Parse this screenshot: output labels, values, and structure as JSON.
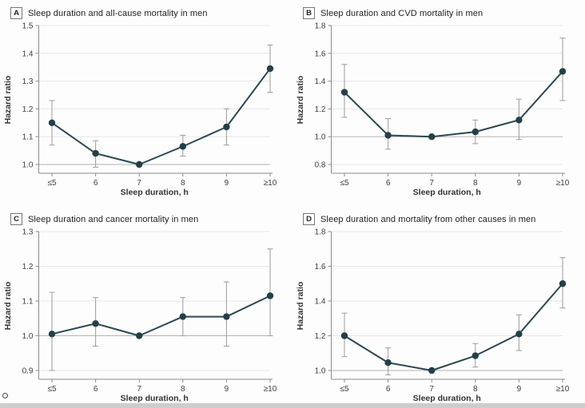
{
  "figure_title": "Sleep duration and mortality in men — hazard ratio panels",
  "colors": {
    "background": "#fdfdfd",
    "line": "#2b4852",
    "marker": "#243f48",
    "error_bar": "#a3a3a3",
    "grid": "#e6e6e6",
    "ref_grid": "#b3b3b3",
    "axis": "#8c8c8c",
    "tick_text": "#404040",
    "axis_title": "#333333",
    "panel_title": "#222222",
    "badge_border": "#777777",
    "bottom_bar": "#cdcdcd",
    "artifact_ring": "#4a4a4a"
  },
  "chart_data": [
    {
      "type": "line",
      "panel_label": "A",
      "title": "Sleep duration and all-cause mortality in men",
      "xlabel": "Sleep duration, h",
      "ylabel": "Hazard ratio",
      "categories": [
        "≤5",
        "6",
        "7",
        "8",
        "9",
        "≥10"
      ],
      "ylim": [
        1.0,
        1.5
      ],
      "yticks": [
        1.0,
        1.1,
        1.2,
        1.3,
        1.4,
        1.5
      ],
      "ref_line": 1.0,
      "grid": true,
      "legend_position": "none",
      "series": [
        {
          "name": "Hazard ratio (95% CI)",
          "values": [
            1.15,
            1.04,
            1.0,
            1.065,
            1.135,
            1.345
          ],
          "ci_low": [
            1.07,
            0.99,
            null,
            1.03,
            1.07,
            1.26
          ],
          "ci_high": [
            1.23,
            1.085,
            null,
            1.105,
            1.2,
            1.43
          ]
        }
      ]
    },
    {
      "type": "line",
      "panel_label": "B",
      "title": "Sleep duration and CVD mortality in men",
      "xlabel": "Sleep duration, h",
      "ylabel": "Hazard ratio",
      "categories": [
        "≤5",
        "6",
        "7",
        "8",
        "9",
        "≥10"
      ],
      "ylim": [
        0.8,
        1.8
      ],
      "yticks": [
        0.8,
        1.0,
        1.2,
        1.4,
        1.6,
        1.8
      ],
      "ref_line": 1.0,
      "grid": true,
      "legend_position": "none",
      "series": [
        {
          "name": "Hazard ratio (95% CI)",
          "values": [
            1.32,
            1.01,
            1.0,
            1.035,
            1.12,
            1.47
          ],
          "ci_low": [
            1.14,
            0.91,
            null,
            0.95,
            0.98,
            1.26
          ],
          "ci_high": [
            1.52,
            1.13,
            null,
            1.12,
            1.27,
            1.71
          ]
        }
      ]
    },
    {
      "type": "line",
      "panel_label": "C",
      "title": "Sleep duration and cancer mortality in men",
      "xlabel": "Sleep duration, h",
      "ylabel": "Hazard ratio",
      "categories": [
        "≤5",
        "6",
        "7",
        "8",
        "9",
        "≥10"
      ],
      "ylim": [
        0.9,
        1.3
      ],
      "yticks": [
        0.9,
        1.0,
        1.1,
        1.2,
        1.3
      ],
      "ref_line": 1.0,
      "grid": true,
      "legend_position": "none",
      "series": [
        {
          "name": "Hazard ratio (95% CI)",
          "values": [
            1.005,
            1.035,
            1.0,
            1.055,
            1.055,
            1.115
          ],
          "ci_low": [
            0.9,
            0.97,
            null,
            1.0,
            0.97,
            1.0
          ],
          "ci_high": [
            1.125,
            1.11,
            null,
            1.11,
            1.155,
            1.25
          ]
        }
      ]
    },
    {
      "type": "line",
      "panel_label": "D",
      "title": "Sleep duration and mortality from other causes in men",
      "xlabel": "Sleep duration, h",
      "ylabel": "Hazard ratio",
      "categories": [
        "≤5",
        "6",
        "7",
        "8",
        "9",
        "≥10"
      ],
      "ylim": [
        1.0,
        1.8
      ],
      "yticks": [
        1.0,
        1.2,
        1.4,
        1.6,
        1.8
      ],
      "ref_line": 1.0,
      "grid": true,
      "legend_position": "none",
      "series": [
        {
          "name": "Hazard ratio (95% CI)",
          "values": [
            1.2,
            1.045,
            1.0,
            1.085,
            1.21,
            1.5
          ],
          "ci_low": [
            1.08,
            0.975,
            null,
            1.02,
            1.115,
            1.36
          ],
          "ci_high": [
            1.33,
            1.13,
            null,
            1.155,
            1.32,
            1.65
          ]
        }
      ]
    }
  ]
}
